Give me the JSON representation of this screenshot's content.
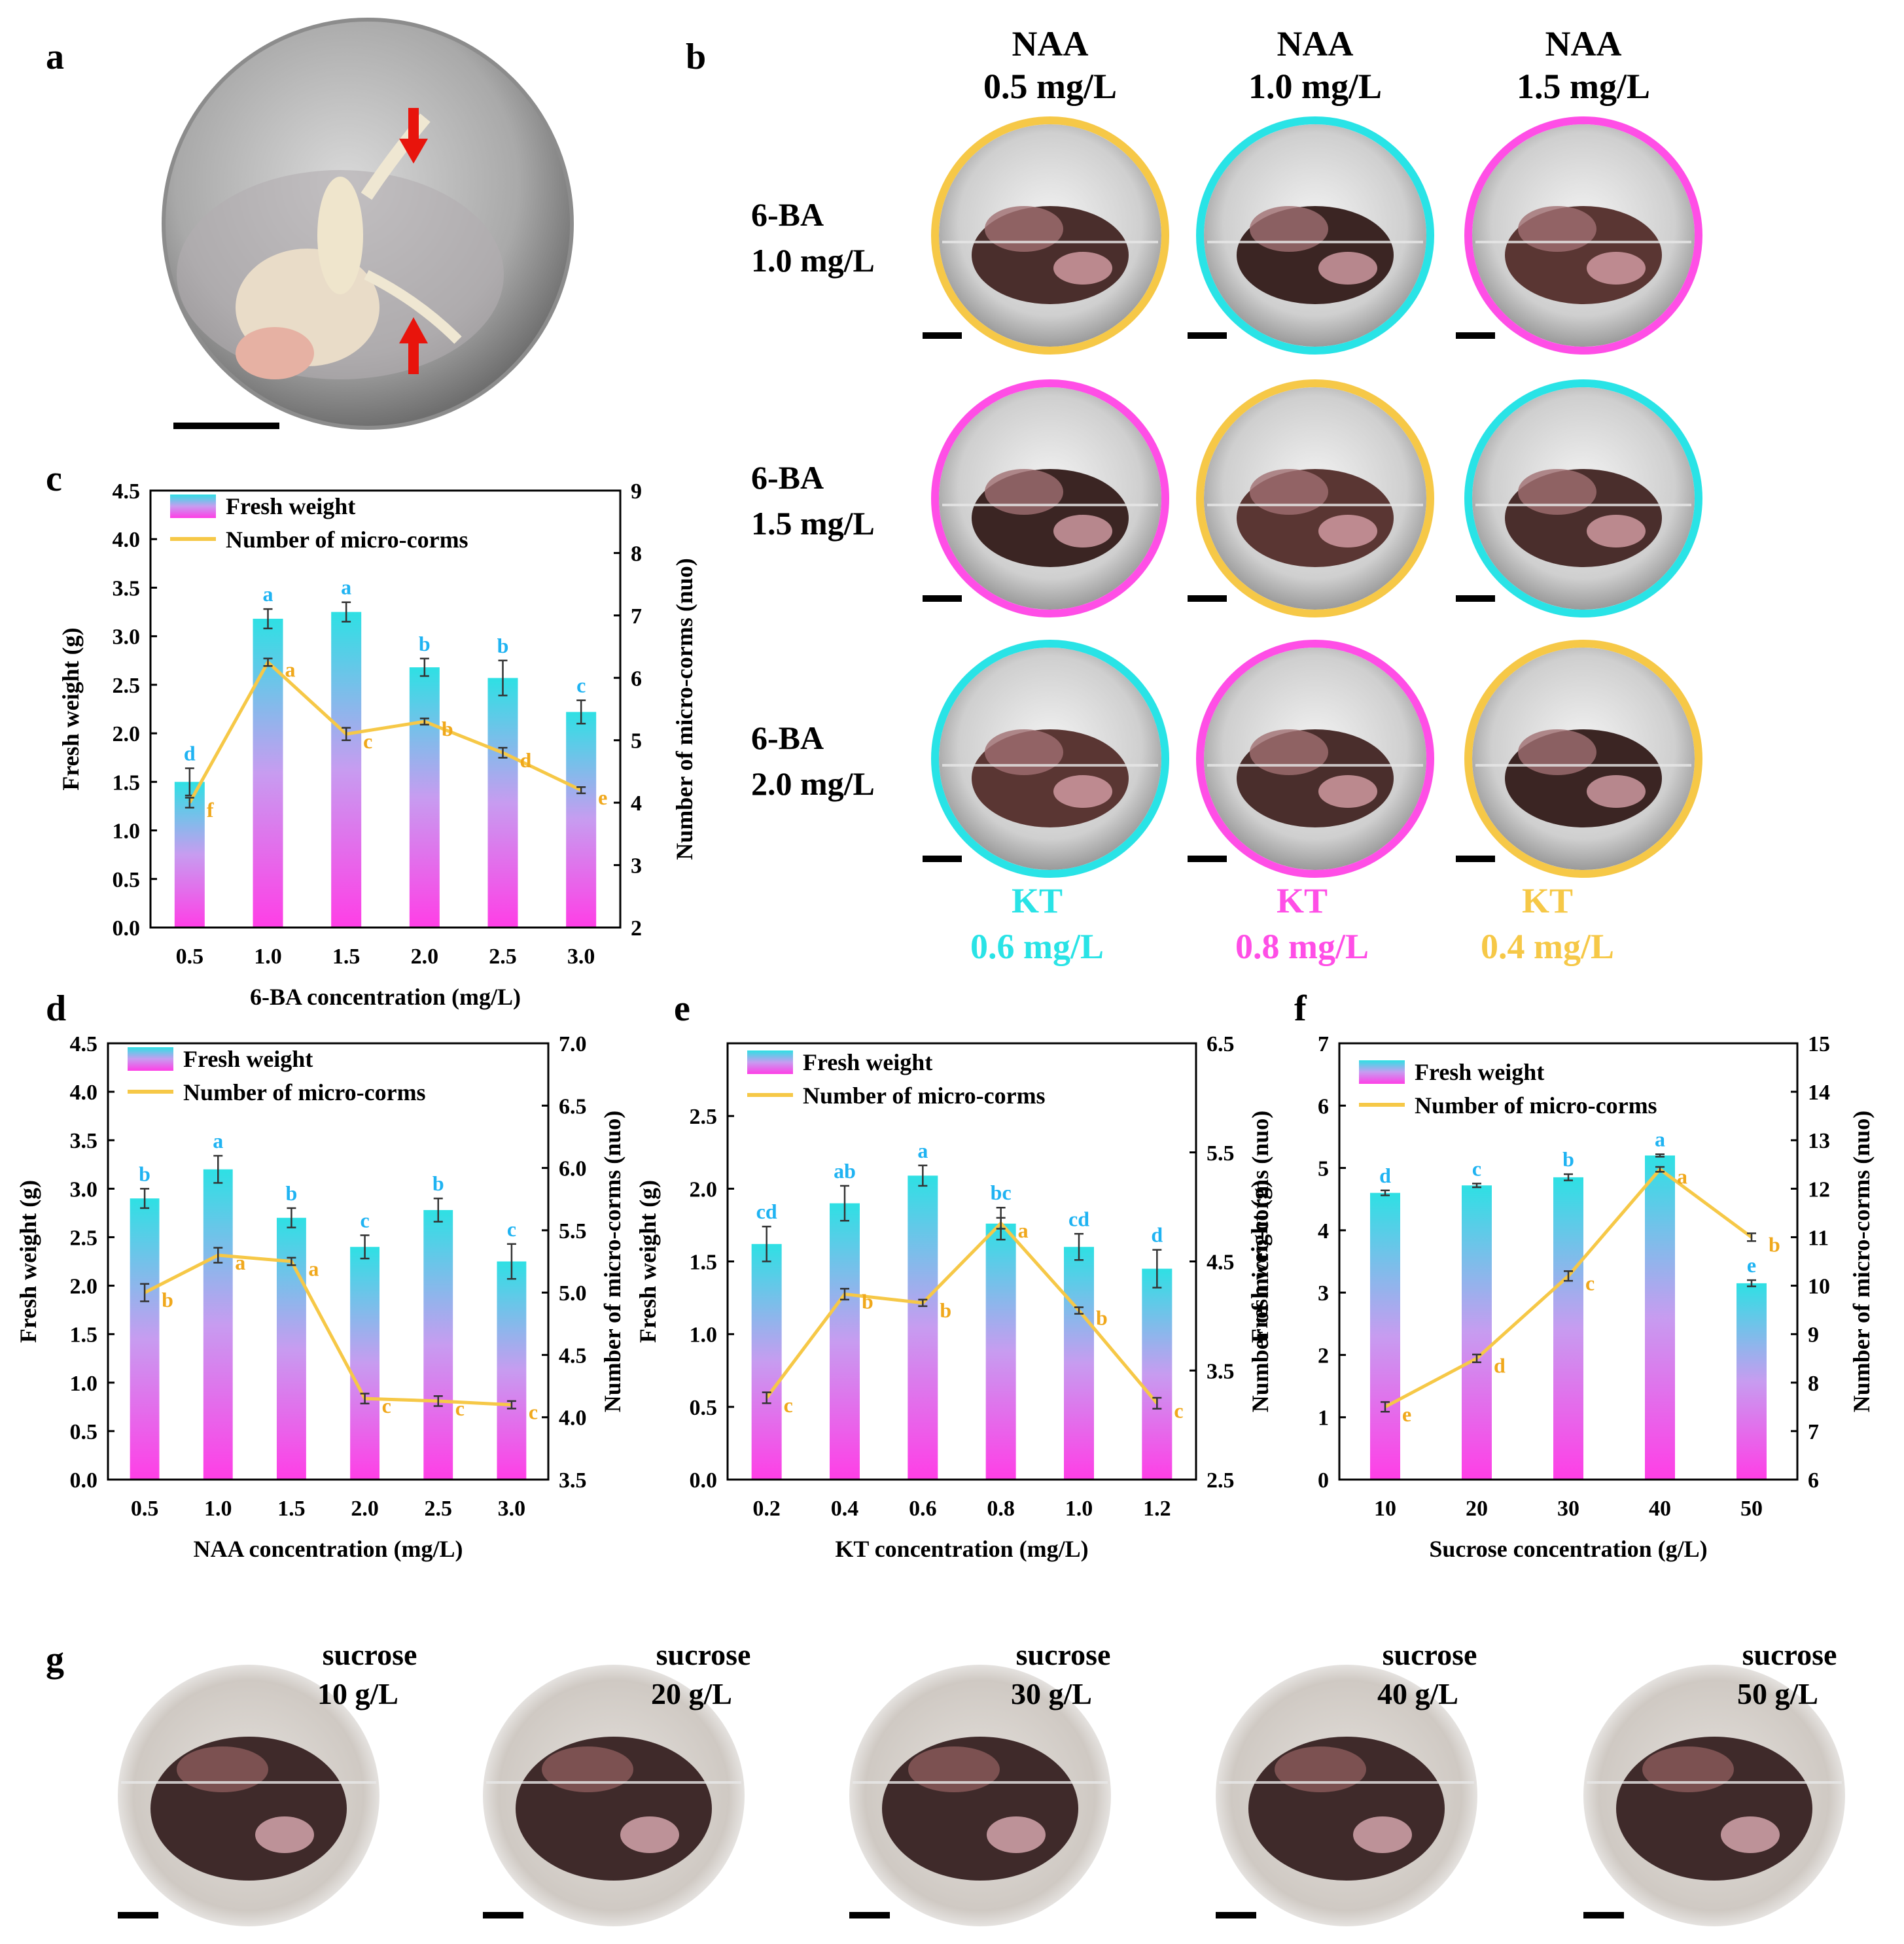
{
  "colors": {
    "cyan": "#29e3e6",
    "magenta": "#ff4ee6",
    "gold": "#f6c847",
    "sig_cyan": "#1fb3f2",
    "sig_gold": "#f0a81c"
  },
  "panels": {
    "a": {
      "label": "a"
    },
    "b": {
      "label": "b",
      "col_headers": [
        {
          "l1": "NAA",
          "l2": "0.5 mg/L"
        },
        {
          "l1": "NAA",
          "l2": "1.0 mg/L"
        },
        {
          "l1": "NAA",
          "l2": "1.5 mg/L"
        }
      ],
      "row_labels": [
        {
          "l1": "6-BA",
          "l2": "1.0 mg/L"
        },
        {
          "l1": "6-BA",
          "l2": "1.5 mg/L"
        },
        {
          "l1": "6-BA",
          "l2": "2.0 mg/L"
        }
      ],
      "kt_labels": [
        {
          "l1": "KT",
          "l2": "0.6 mg/L",
          "color": "#29e3e6"
        },
        {
          "l1": "KT",
          "l2": "0.8 mg/L",
          "color": "#ff4ee6"
        },
        {
          "l1": "KT",
          "l2": "0.4 mg/L",
          "color": "#f6c847"
        }
      ],
      "ring_colors": [
        [
          "#f6c847",
          "#29e3e6",
          "#ff4ee6"
        ],
        [
          "#ff4ee6",
          "#f6c847",
          "#29e3e6"
        ],
        [
          "#29e3e6",
          "#ff4ee6",
          "#f6c847"
        ]
      ]
    },
    "g": {
      "label": "g",
      "items": [
        {
          "l1": "sucrose",
          "l2": "10 g/L"
        },
        {
          "l1": "sucrose",
          "l2": "20 g/L"
        },
        {
          "l1": "sucrose",
          "l2": "30 g/L"
        },
        {
          "l1": "sucrose",
          "l2": "40 g/L"
        },
        {
          "l1": "sucrose",
          "l2": "50 g/L"
        }
      ]
    }
  },
  "chart_data": [
    {
      "id": "c",
      "type": "bar+line",
      "categories": [
        "0.5",
        "1.0",
        "1.5",
        "2.0",
        "2.5",
        "3.0"
      ],
      "xlabel": "6-BA concentration (mg/L)",
      "ylabel": "Fresh weight (g)",
      "y2label": "Number of micro-corms (nuo)",
      "ylim": [
        0,
        4.5
      ],
      "yticks": [
        "0.0",
        "0.5",
        "1.0",
        "1.5",
        "2.0",
        "2.5",
        "3.0",
        "3.5",
        "4.0",
        "4.5"
      ],
      "y2lim": [
        2,
        9
      ],
      "y2ticks": [
        "2",
        "3",
        "4",
        "5",
        "6",
        "7",
        "8",
        "9"
      ],
      "legend": [
        "Fresh weight",
        "Number of micro-corms"
      ],
      "series": [
        {
          "name": "Fresh weight",
          "values": [
            1.5,
            3.18,
            3.25,
            2.68,
            2.57,
            2.22
          ],
          "errors": [
            0.14,
            0.1,
            0.1,
            0.09,
            0.18,
            0.12
          ],
          "letters": [
            "d",
            "a",
            "a",
            "b",
            "b",
            "c"
          ]
        },
        {
          "name": "Number of micro-corms",
          "values": [
            4.0,
            6.25,
            5.1,
            5.3,
            4.8,
            4.2
          ],
          "errors": [
            0.08,
            0.06,
            0.1,
            0.05,
            0.08,
            0.05
          ],
          "letters": [
            "f",
            "a",
            "c",
            "b",
            "d",
            "e"
          ]
        }
      ]
    },
    {
      "id": "d",
      "type": "bar+line",
      "categories": [
        "0.5",
        "1.0",
        "1.5",
        "2.0",
        "2.5",
        "3.0"
      ],
      "xlabel": "NAA concentration (mg/L)",
      "ylabel": "Fresh weight (g)",
      "y2label": "Number of micro-corms (nuo)",
      "ylim": [
        0,
        4.5
      ],
      "yticks": [
        "0.0",
        "0.5",
        "1.0",
        "1.5",
        "2.0",
        "2.5",
        "3.0",
        "3.5",
        "4.0",
        "4.5"
      ],
      "y2lim": [
        3.5,
        7.0
      ],
      "y2ticks": [
        "3.5",
        "4.0",
        "4.5",
        "5.0",
        "5.5",
        "6.0",
        "6.5",
        "7.0"
      ],
      "legend": [
        "Fresh weight",
        "Number of micro-corms"
      ],
      "series": [
        {
          "name": "Fresh weight",
          "values": [
            2.9,
            3.2,
            2.7,
            2.4,
            2.78,
            2.25
          ],
          "errors": [
            0.1,
            0.14,
            0.1,
            0.12,
            0.12,
            0.18
          ],
          "letters": [
            "b",
            "a",
            "b",
            "c",
            "b",
            "c"
          ]
        },
        {
          "name": "Number of micro-corms",
          "values": [
            5.0,
            5.3,
            5.25,
            4.15,
            4.13,
            4.1
          ],
          "errors": [
            0.07,
            0.06,
            0.03,
            0.04,
            0.04,
            0.03
          ],
          "letters": [
            "b",
            "a",
            "a",
            "c",
            "c",
            "c"
          ]
        }
      ]
    },
    {
      "id": "e",
      "type": "bar+line",
      "categories": [
        "0.2",
        "0.4",
        "0.6",
        "0.8",
        "1.0",
        "1.2"
      ],
      "xlabel": "KT concentration (mg/L)",
      "ylabel": "Fresh weight (g)",
      "y2label": "Number of micro-corms (nuo)",
      "ylim": [
        0,
        3.0
      ],
      "yticks": [
        "0.0",
        "0.5",
        "1.0",
        "1.5",
        "2.0",
        "2.5"
      ],
      "y2lim": [
        2.5,
        6.5
      ],
      "y2ticks": [
        "2.5",
        "3.5",
        "4.5",
        "5.5",
        "6.5"
      ],
      "legend": [
        "Fresh weight",
        "Number of micro-corms"
      ],
      "series": [
        {
          "name": "Fresh weight",
          "values": [
            1.62,
            1.9,
            2.09,
            1.76,
            1.6,
            1.45
          ],
          "errors": [
            0.12,
            0.12,
            0.07,
            0.11,
            0.09,
            0.13
          ],
          "letters": [
            "cd",
            "ab",
            "a",
            "bc",
            "cd",
            "d"
          ]
        },
        {
          "name": "Number of micro-corms",
          "values": [
            3.25,
            4.2,
            4.12,
            4.85,
            4.05,
            3.2
          ],
          "errors": [
            0.05,
            0.05,
            0.03,
            0.05,
            0.03,
            0.05
          ],
          "letters": [
            "c",
            "b",
            "b",
            "a",
            "b",
            "c"
          ]
        }
      ]
    },
    {
      "id": "f",
      "type": "bar+line",
      "categories": [
        "10",
        "20",
        "30",
        "40",
        "50"
      ],
      "xlabel": "Sucrose concentration (g/L)",
      "ylabel": "Fresh weight (g)",
      "y2label": "Number of micro-corms (nuo)",
      "ylim": [
        0,
        7
      ],
      "yticks": [
        "0",
        "1",
        "2",
        "3",
        "4",
        "5",
        "6",
        "7"
      ],
      "y2lim": [
        6,
        15
      ],
      "y2ticks": [
        "6",
        "7",
        "8",
        "9",
        "10",
        "11",
        "12",
        "13",
        "14",
        "15"
      ],
      "legend": [
        "Fresh weight",
        "Number of micro-corms"
      ],
      "series": [
        {
          "name": "Fresh weight",
          "values": [
            4.6,
            4.72,
            4.85,
            5.2,
            3.15
          ],
          "errors": [
            0.04,
            0.03,
            0.05,
            0.02,
            0.05
          ],
          "letters": [
            "d",
            "c",
            "b",
            "a",
            "e"
          ]
        },
        {
          "name": "Number of micro-corms",
          "values": [
            7.5,
            8.5,
            10.2,
            12.4,
            11.0
          ],
          "errors": [
            0.1,
            0.08,
            0.1,
            0.05,
            0.08
          ],
          "letters": [
            "e",
            "d",
            "c",
            "a",
            "b"
          ]
        }
      ]
    }
  ]
}
